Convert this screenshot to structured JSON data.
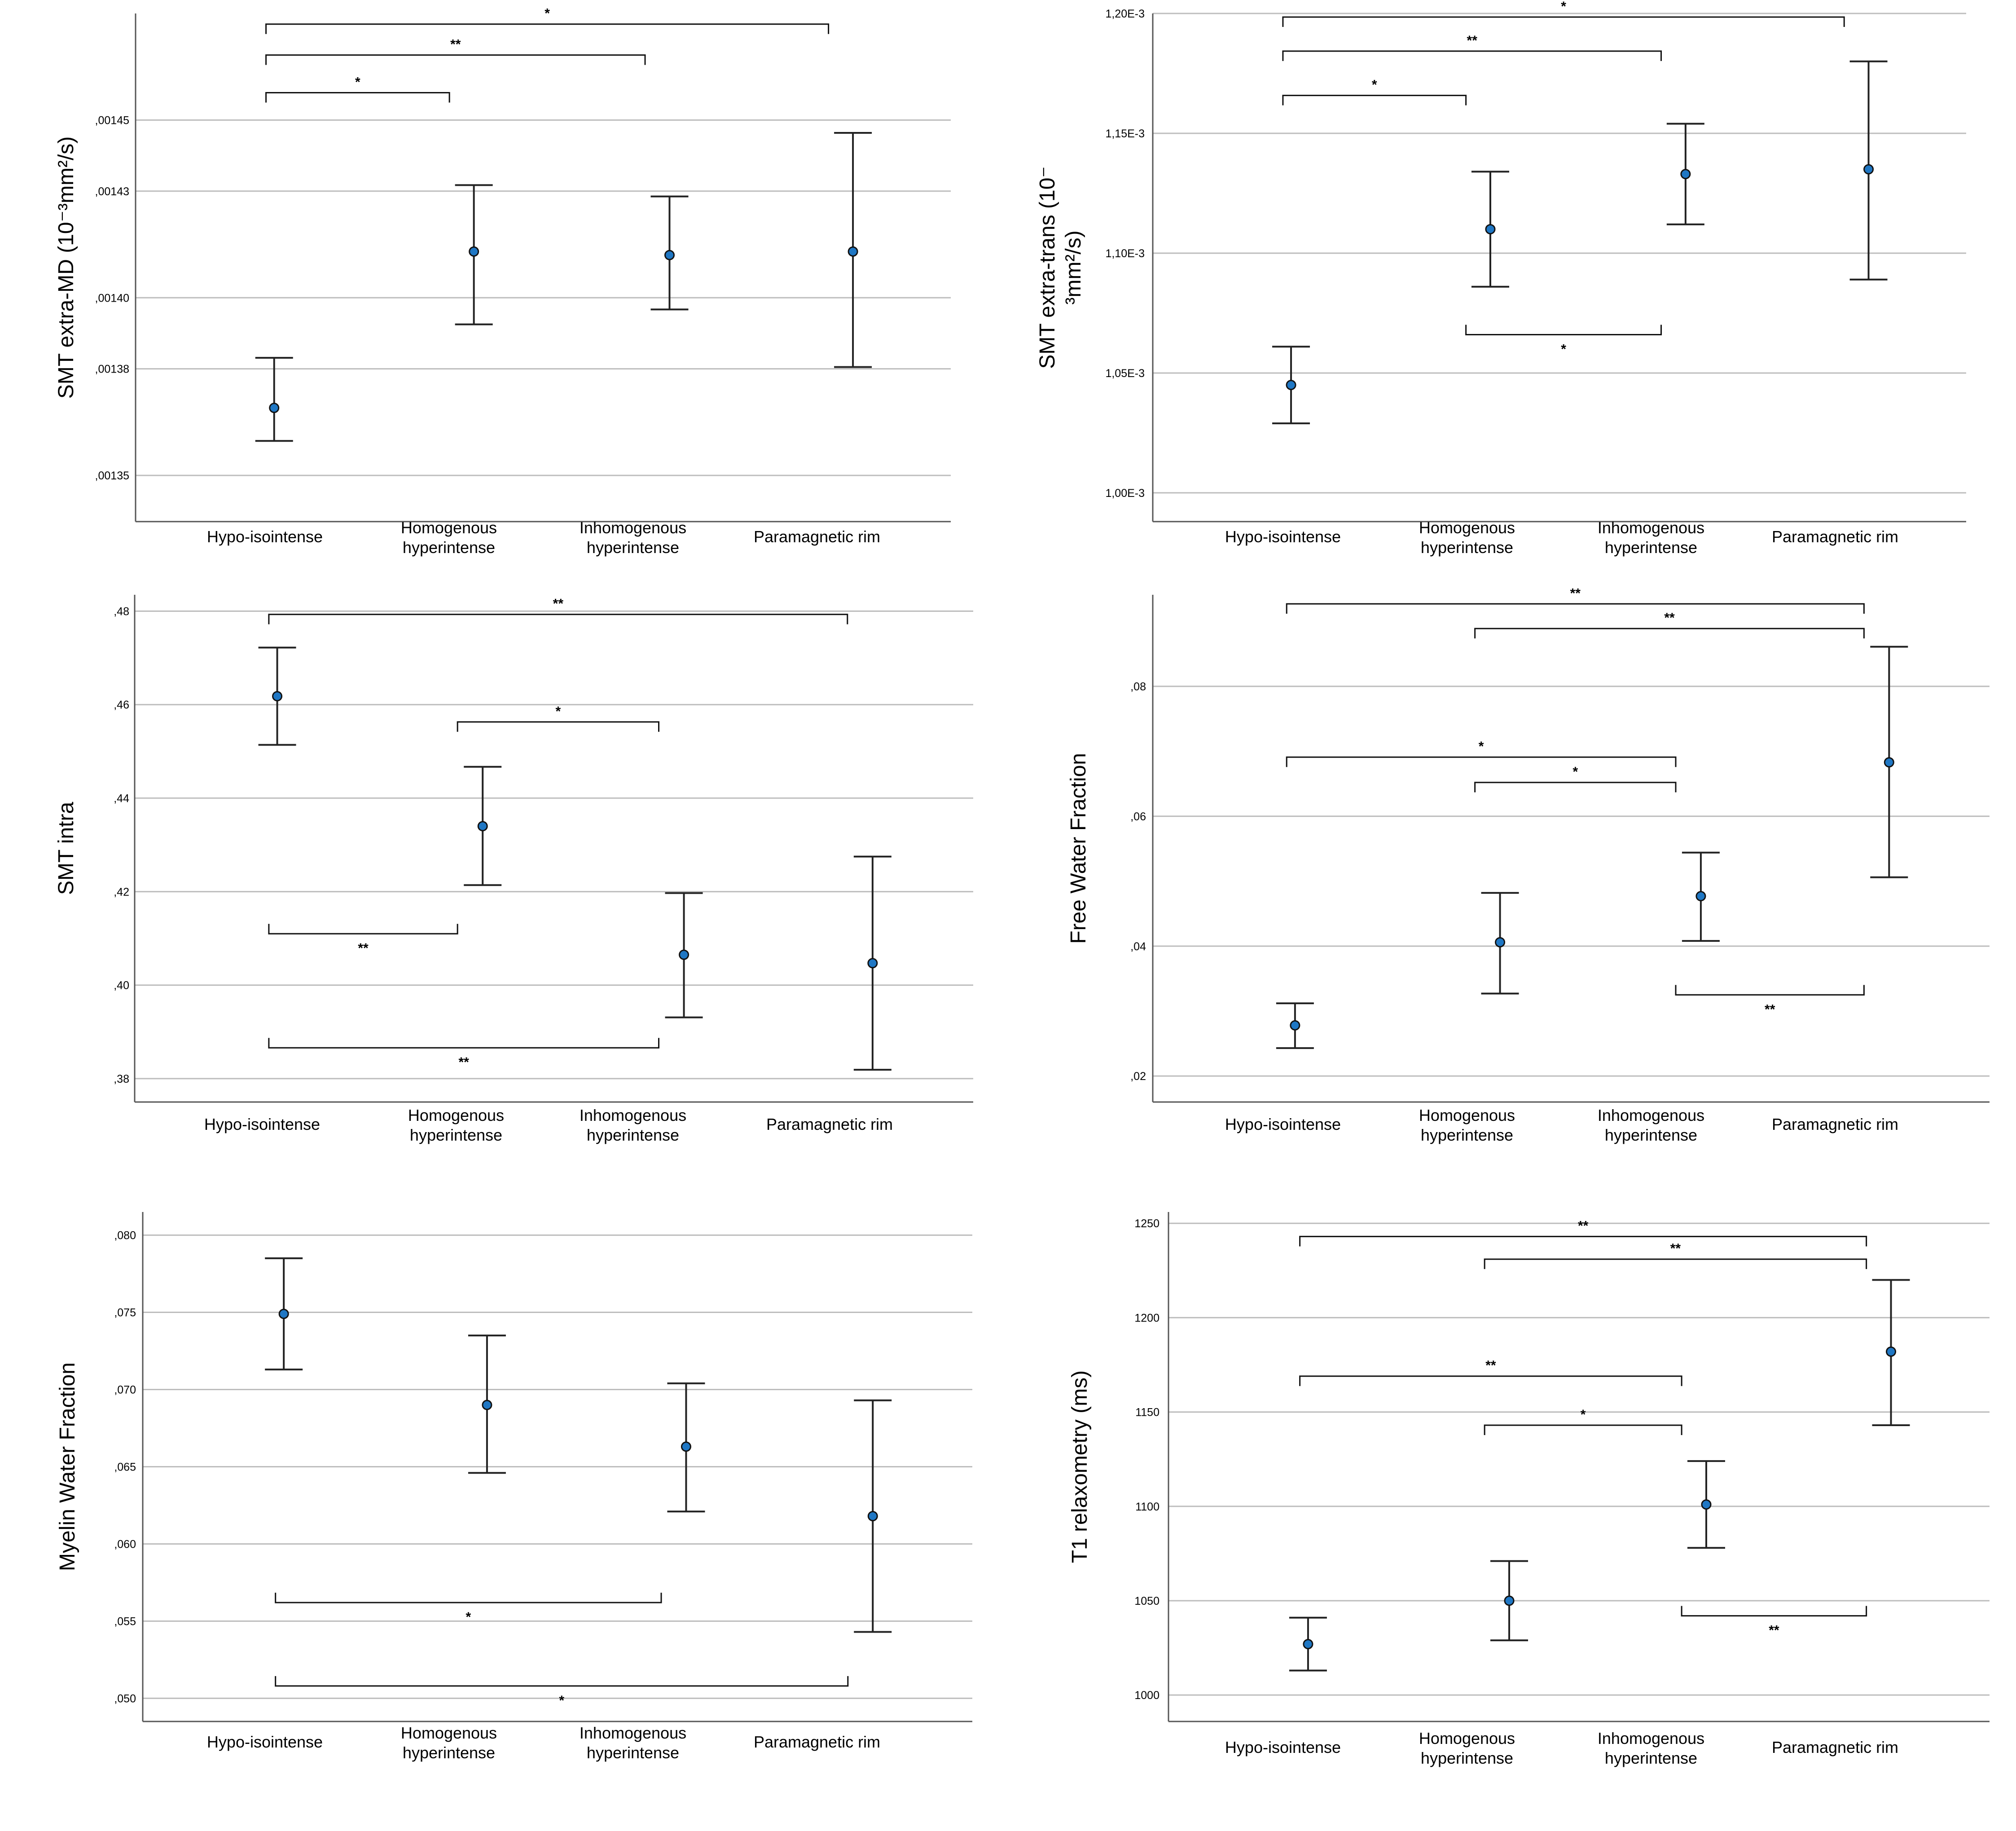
{
  "figure": {
    "categories": [
      "Hypo-isointense",
      "Homogenous hyperintense",
      "Inhomogenous hyperintense",
      "Paramagnetic rim"
    ],
    "category_lines": [
      [
        "Hypo-isointense"
      ],
      [
        "Homogenous",
        "hyperintense"
      ],
      [
        "Inhomogenous",
        "hyperintense"
      ],
      [
        "Paramagnetic rim"
      ]
    ]
  },
  "chart_data": [
    {
      "id": "smt-extra-md",
      "type": "errorbar",
      "ylabel_lines": [
        "SMT extra-MD (10⁻³mm²/s)"
      ],
      "ylim": [
        0.001337,
        0.00148
      ],
      "ticks": [
        0.00135,
        0.00138,
        0.0014,
        0.00143,
        0.00145
      ],
      "tick_labels": [
        ",00135",
        ",00138",
        ",00140",
        ",00143",
        ",00145"
      ],
      "means": [
        0.001369,
        0.001413,
        0.001412,
        0.001413
      ],
      "lower": [
        0.0013597,
        0.0013925,
        0.0013967,
        0.0013805
      ],
      "upper": [
        0.0013831,
        0.0014317,
        0.0014285,
        0.0014464
      ],
      "comparisons": [
        {
          "from": 0,
          "to": 3,
          "label": "*",
          "y": 0.001477,
          "dir": "down"
        },
        {
          "from": 0,
          "to": 2,
          "label": "**",
          "y": 0.0014683,
          "dir": "down"
        },
        {
          "from": 0,
          "to": 1,
          "label": "*",
          "y": 0.0014577,
          "dir": "down"
        }
      ]
    },
    {
      "id": "smt-extra-trans",
      "type": "errorbar",
      "ylabel_lines": [
        "SMT extra-trans (10⁻",
        "³mm²/s)"
      ],
      "ylim": [
        0.000988,
        0.0012
      ],
      "ticks": [
        0.001,
        0.00105,
        0.0011,
        0.00115,
        0.0012
      ],
      "tick_labels": [
        "1,00E-3",
        "1,05E-3",
        "1,10E-3",
        "1,15E-3",
        "1,20E-3"
      ],
      "means": [
        0.001045,
        0.00111,
        0.001133,
        0.001135
      ],
      "lower": [
        0.001029,
        0.001086,
        0.001112,
        0.001089
      ],
      "upper": [
        0.001061,
        0.001134,
        0.001154,
        0.00118
      ],
      "comparisons": [
        {
          "from": 0,
          "to": 3,
          "label": "*",
          "y": 0.0011985,
          "dir": "down"
        },
        {
          "from": 0,
          "to": 2,
          "label": "**",
          "y": 0.0011843,
          "dir": "down"
        },
        {
          "from": 0,
          "to": 1,
          "label": "*",
          "y": 0.0011658,
          "dir": "down"
        },
        {
          "from": 1,
          "to": 2,
          "label": "*",
          "y": 0.001066,
          "dir": "up"
        }
      ]
    },
    {
      "id": "smt-intra",
      "type": "errorbar",
      "ylabel_lines": [
        "SMT intra"
      ],
      "ylim": [
        0.375,
        0.4835
      ],
      "ticks": [
        0.38,
        0.4,
        0.42,
        0.44,
        0.46,
        0.48
      ],
      "tick_labels": [
        ",38",
        ",40",
        ",42",
        ",44",
        ",46",
        ",48"
      ],
      "means": [
        0.4618,
        0.434,
        0.4065,
        0.4047
      ],
      "lower": [
        0.4514,
        0.4214,
        0.3931,
        0.3819
      ],
      "upper": [
        0.4722,
        0.4467,
        0.4197,
        0.4275
      ],
      "comparisons": [
        {
          "from": 0,
          "to": 3,
          "label": "**",
          "y": 0.4793,
          "dir": "down"
        },
        {
          "from": 1,
          "to": 2,
          "label": "*",
          "y": 0.4563,
          "dir": "down"
        },
        {
          "from": 0,
          "to": 1,
          "label": "**",
          "y": 0.411,
          "dir": "up"
        },
        {
          "from": 0,
          "to": 2,
          "label": "**",
          "y": 0.3866,
          "dir": "up"
        }
      ]
    },
    {
      "id": "free-water-fraction",
      "type": "errorbar",
      "ylabel_lines": [
        "Free Water Fraction"
      ],
      "ylim": [
        0.016,
        0.0941
      ],
      "ticks": [
        0.02,
        0.04,
        0.06,
        0.08
      ],
      "tick_labels": [
        ",02",
        ",04",
        ",06",
        ",08"
      ],
      "means": [
        0.0278,
        0.0406,
        0.0477,
        0.0683
      ],
      "lower": [
        0.0243,
        0.0327,
        0.0408,
        0.0506
      ],
      "upper": [
        0.0312,
        0.0482,
        0.0544,
        0.0861
      ],
      "comparisons": [
        {
          "from": 0,
          "to": 3,
          "label": "**",
          "y": 0.0927,
          "dir": "down"
        },
        {
          "from": 1,
          "to": 3,
          "label": "**",
          "y": 0.0889,
          "dir": "down"
        },
        {
          "from": 0,
          "to": 2,
          "label": "*",
          "y": 0.0691,
          "dir": "down"
        },
        {
          "from": 1,
          "to": 2,
          "label": "*",
          "y": 0.0652,
          "dir": "down"
        },
        {
          "from": 2,
          "to": 3,
          "label": "**",
          "y": 0.0325,
          "dir": "up"
        }
      ]
    },
    {
      "id": "myelin-water-fraction",
      "type": "errorbar",
      "ylabel_lines": [
        "Myelin Water Fraction"
      ],
      "ylim": [
        0.0485,
        0.0815
      ],
      "ticks": [
        0.05,
        0.055,
        0.06,
        0.065,
        0.07,
        0.075,
        0.08
      ],
      "tick_labels": [
        ",050",
        ",055",
        ",060",
        ",065",
        ",070",
        ",075",
        ",080"
      ],
      "means": [
        0.0749,
        0.069,
        0.0663,
        0.0618
      ],
      "lower": [
        0.0713,
        0.0646,
        0.0621,
        0.0543
      ],
      "upper": [
        0.0785,
        0.0735,
        0.0704,
        0.0693
      ],
      "comparisons": [
        {
          "from": 0,
          "to": 2,
          "label": "*",
          "y": 0.0562,
          "dir": "up"
        },
        {
          "from": 0,
          "to": 3,
          "label": "*",
          "y": 0.0508,
          "dir": "up"
        }
      ]
    },
    {
      "id": "t1-relaxometry",
      "type": "errorbar",
      "ylabel_lines": [
        "T1 relaxometry (ms)"
      ],
      "ylim": [
        986,
        1256
      ],
      "ticks": [
        1000,
        1050,
        1100,
        1150,
        1200,
        1250
      ],
      "tick_labels": [
        "1000",
        "1050",
        "1100",
        "1150",
        "1200",
        "1250"
      ],
      "means": [
        1027,
        1050,
        1101,
        1182
      ],
      "lower": [
        1013,
        1029,
        1078,
        1143
      ],
      "upper": [
        1041,
        1071,
        1124,
        1220
      ],
      "comparisons": [
        {
          "from": 0,
          "to": 3,
          "label": "**",
          "y": 1243,
          "dir": "down"
        },
        {
          "from": 1,
          "to": 3,
          "label": "**",
          "y": 1231,
          "dir": "down"
        },
        {
          "from": 0,
          "to": 2,
          "label": "**",
          "y": 1169,
          "dir": "down"
        },
        {
          "from": 1,
          "to": 2,
          "label": "*",
          "y": 1143,
          "dir": "down"
        },
        {
          "from": 2,
          "to": 3,
          "label": "**",
          "y": 1042,
          "dir": "up"
        }
      ]
    }
  ]
}
